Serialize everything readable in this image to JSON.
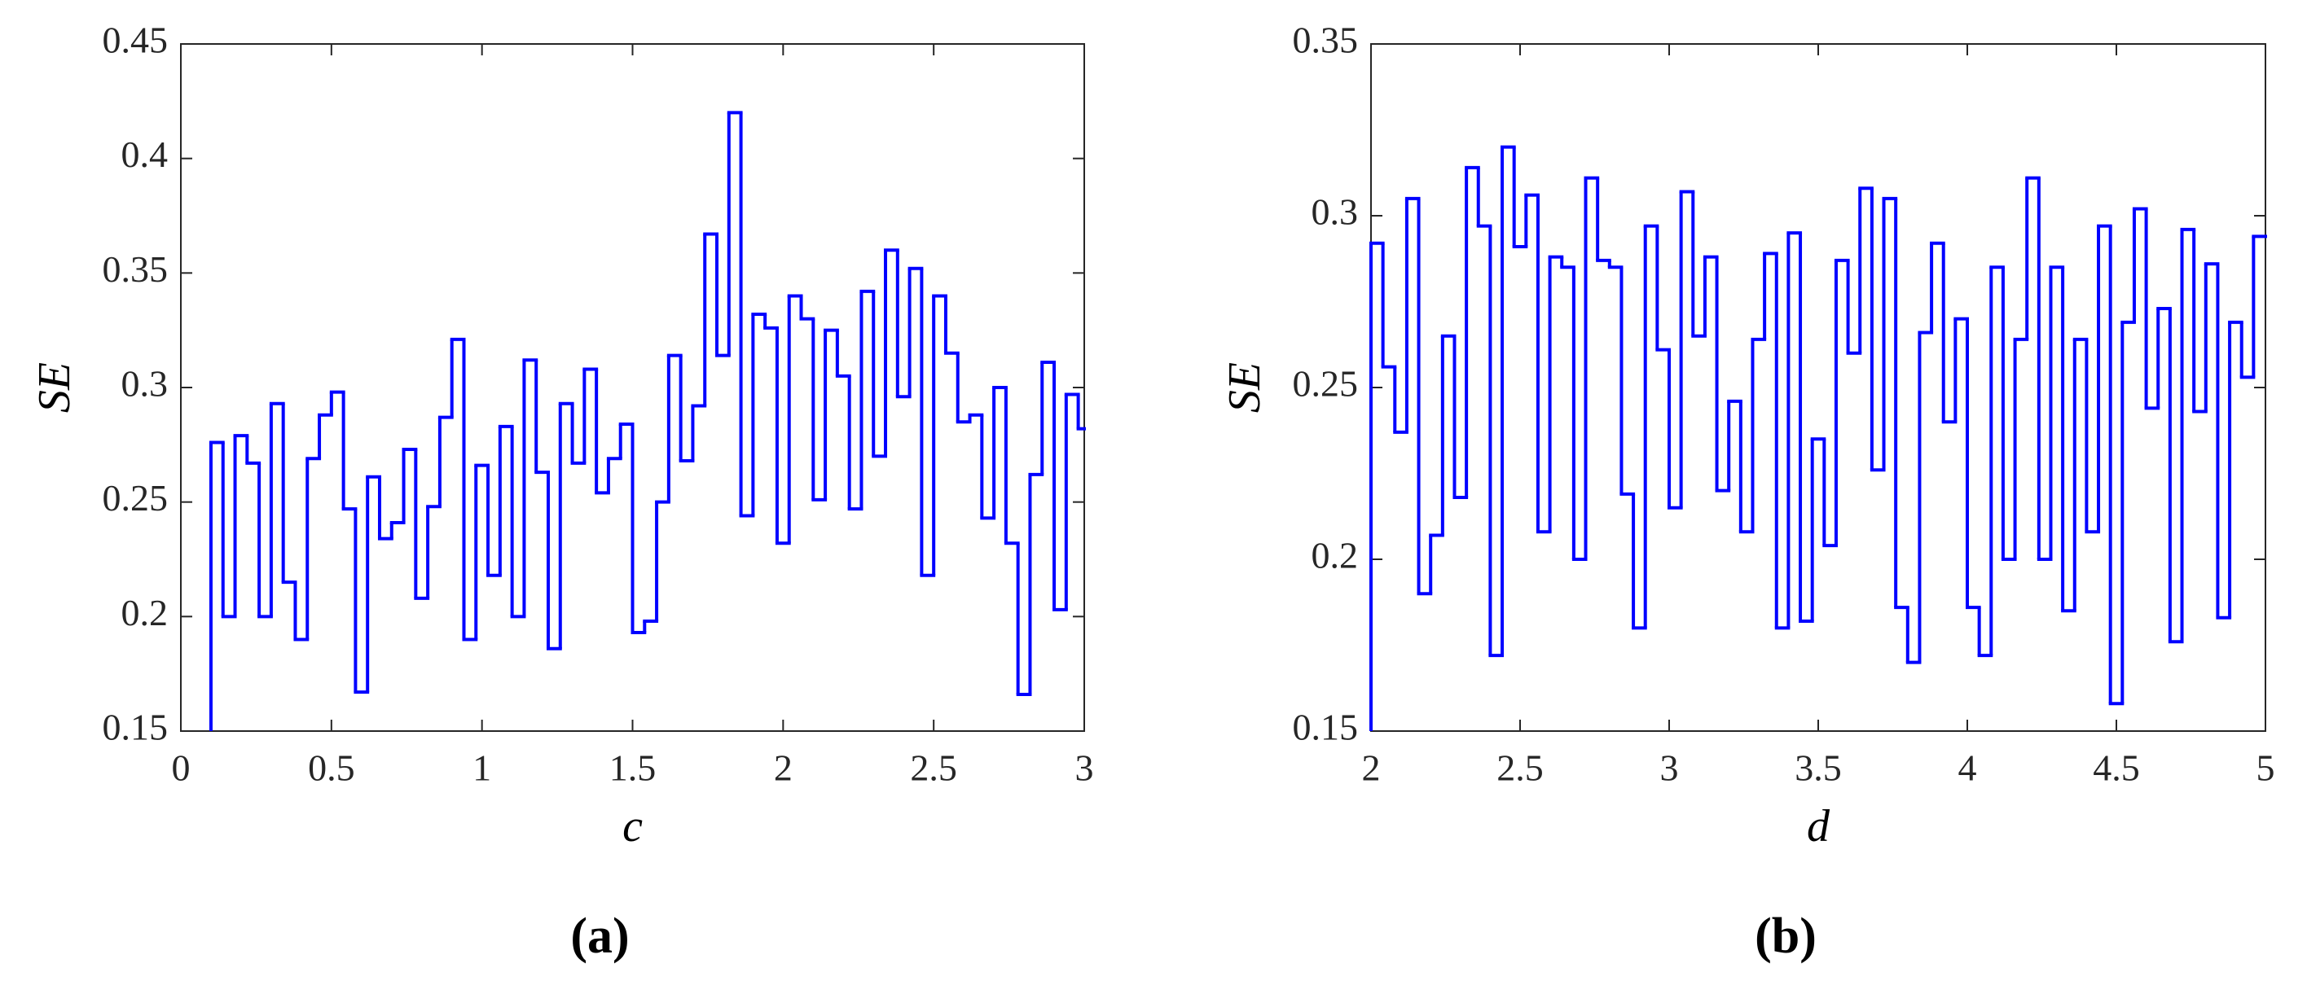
{
  "chart_data": [
    {
      "type": "line",
      "drawstyle": "steps-post",
      "color": "#0000ff",
      "xlabel": "c",
      "ylabel": "SE",
      "panel_label": "(a)",
      "x": [
        0.1,
        0.14,
        0.18,
        0.22,
        0.26,
        0.3,
        0.34,
        0.38,
        0.42,
        0.46,
        0.5,
        0.54,
        0.58,
        0.62,
        0.66,
        0.7,
        0.74,
        0.78,
        0.82,
        0.86,
        0.9,
        0.94,
        0.98,
        1.02,
        1.06,
        1.1,
        1.14,
        1.18,
        1.22,
        1.26,
        1.3,
        1.34,
        1.38,
        1.42,
        1.46,
        1.5,
        1.54,
        1.58,
        1.62,
        1.66,
        1.7,
        1.74,
        1.78,
        1.82,
        1.86,
        1.9,
        1.94,
        1.98,
        2.02,
        2.06,
        2.1,
        2.14,
        2.18,
        2.22,
        2.26,
        2.3,
        2.34,
        2.38,
        2.42,
        2.46,
        2.5,
        2.54,
        2.58,
        2.62,
        2.66,
        2.7,
        2.74,
        2.78,
        2.82,
        2.86,
        2.9,
        2.94,
        2.98
      ],
      "values": [
        0.276,
        0.2,
        0.279,
        0.267,
        0.2,
        0.293,
        0.215,
        0.19,
        0.269,
        0.288,
        0.298,
        0.247,
        0.167,
        0.261,
        0.234,
        0.241,
        0.273,
        0.208,
        0.248,
        0.287,
        0.321,
        0.19,
        0.266,
        0.218,
        0.283,
        0.2,
        0.312,
        0.263,
        0.186,
        0.293,
        0.267,
        0.308,
        0.254,
        0.269,
        0.284,
        0.193,
        0.198,
        0.25,
        0.314,
        0.268,
        0.292,
        0.367,
        0.314,
        0.42,
        0.244,
        0.332,
        0.326,
        0.232,
        0.34,
        0.33,
        0.251,
        0.325,
        0.305,
        0.247,
        0.342,
        0.27,
        0.36,
        0.296,
        0.352,
        0.218,
        0.34,
        0.315,
        0.285,
        0.288,
        0.243,
        0.3,
        0.232,
        0.166,
        0.262,
        0.311,
        0.203,
        0.297,
        0.282
      ],
      "xlim": [
        0,
        3
      ],
      "xticks": [
        0,
        0.5,
        1,
        1.5,
        2,
        2.5,
        3
      ],
      "ylim": [
        0.15,
        0.45
      ],
      "yticks": [
        0.15,
        0.2,
        0.25,
        0.3,
        0.35,
        0.4,
        0.45
      ],
      "grid": false
    },
    {
      "type": "line",
      "drawstyle": "steps-post",
      "color": "#0000ff",
      "xlabel": "d",
      "ylabel": "SE",
      "panel_label": "(b)",
      "x": [
        2,
        2.04,
        2.08,
        2.12,
        2.16,
        2.2,
        2.24,
        2.28,
        2.32,
        2.36,
        2.4,
        2.44,
        2.48,
        2.52,
        2.56,
        2.6,
        2.64,
        2.68,
        2.72,
        2.76,
        2.8,
        2.84,
        2.88,
        2.92,
        2.96,
        3,
        3.04,
        3.08,
        3.12,
        3.16,
        3.2,
        3.24,
        3.28,
        3.32,
        3.36,
        3.4,
        3.44,
        3.48,
        3.52,
        3.56,
        3.6,
        3.64,
        3.68,
        3.72,
        3.76,
        3.8,
        3.84,
        3.88,
        3.92,
        3.96,
        4,
        4.04,
        4.08,
        4.12,
        4.16,
        4.2,
        4.24,
        4.28,
        4.32,
        4.36,
        4.4,
        4.44,
        4.48,
        4.52,
        4.56,
        4.6,
        4.64,
        4.68,
        4.72,
        4.76,
        4.8,
        4.84,
        4.88,
        4.92,
        4.96
      ],
      "values": [
        0.292,
        0.256,
        0.237,
        0.305,
        0.19,
        0.207,
        0.265,
        0.218,
        0.314,
        0.297,
        0.172,
        0.32,
        0.291,
        0.306,
        0.208,
        0.288,
        0.285,
        0.2,
        0.311,
        0.287,
        0.285,
        0.219,
        0.18,
        0.297,
        0.261,
        0.215,
        0.307,
        0.265,
        0.288,
        0.22,
        0.246,
        0.208,
        0.264,
        0.289,
        0.18,
        0.295,
        0.182,
        0.235,
        0.204,
        0.287,
        0.26,
        0.308,
        0.226,
        0.305,
        0.186,
        0.17,
        0.266,
        0.292,
        0.24,
        0.27,
        0.186,
        0.172,
        0.285,
        0.2,
        0.264,
        0.311,
        0.2,
        0.285,
        0.185,
        0.264,
        0.208,
        0.297,
        0.158,
        0.269,
        0.302,
        0.244,
        0.273,
        0.176,
        0.296,
        0.243,
        0.286,
        0.183,
        0.269,
        0.253,
        0.294
      ],
      "xlim": [
        2,
        5
      ],
      "xticks": [
        2,
        2.5,
        3,
        3.5,
        4,
        4.5,
        5
      ],
      "ylim": [
        0.15,
        0.35
      ],
      "yticks": [
        0.15,
        0.2,
        0.25,
        0.3,
        0.35
      ],
      "grid": false
    }
  ]
}
